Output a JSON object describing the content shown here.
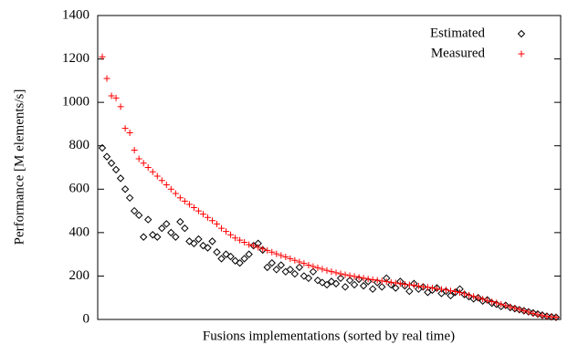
{
  "chart_data": {
    "type": "scatter",
    "x_label": "Fusions implementations (sorted by real time)",
    "y_label": "Performance [M elements/s]",
    "legend": "top-right",
    "xlim": [
      0,
      101
    ],
    "ylim": [
      0,
      1400
    ],
    "yticks": [
      0,
      200,
      400,
      600,
      800,
      1000,
      1200,
      1400
    ],
    "x": [
      1,
      2,
      3,
      4,
      5,
      6,
      7,
      8,
      9,
      10,
      11,
      12,
      13,
      14,
      15,
      16,
      17,
      18,
      19,
      20,
      21,
      22,
      23,
      24,
      25,
      26,
      27,
      28,
      29,
      30,
      31,
      32,
      33,
      34,
      35,
      36,
      37,
      38,
      39,
      40,
      41,
      42,
      43,
      44,
      45,
      46,
      47,
      48,
      49,
      50,
      51,
      52,
      53,
      54,
      55,
      56,
      57,
      58,
      59,
      60,
      61,
      62,
      63,
      64,
      65,
      66,
      67,
      68,
      69,
      70,
      71,
      72,
      73,
      74,
      75,
      76,
      77,
      78,
      79,
      80,
      81,
      82,
      83,
      84,
      85,
      86,
      87,
      88,
      89,
      90,
      91,
      92,
      93,
      94,
      95,
      96,
      97,
      98,
      99,
      100
    ],
    "series": [
      {
        "name": "Estimated",
        "color": "#000000",
        "marker": "diamond",
        "values": [
          790,
          750,
          720,
          690,
          650,
          600,
          560,
          500,
          480,
          380,
          460,
          390,
          380,
          420,
          440,
          400,
          380,
          450,
          420,
          360,
          350,
          370,
          340,
          330,
          360,
          310,
          280,
          300,
          290,
          270,
          260,
          280,
          300,
          340,
          350,
          320,
          240,
          260,
          230,
          250,
          220,
          230,
          210,
          240,
          200,
          190,
          220,
          180,
          170,
          160,
          175,
          165,
          190,
          150,
          180,
          160,
          185,
          155,
          175,
          140,
          170,
          150,
          190,
          160,
          145,
          175,
          155,
          130,
          165,
          140,
          150,
          125,
          135,
          145,
          120,
          130,
          110,
          125,
          140,
          115,
          105,
          95,
          100,
          85,
          90,
          75,
          70,
          60,
          65,
          55,
          50,
          45,
          40,
          35,
          30,
          25,
          20,
          15,
          12,
          10
        ]
      },
      {
        "name": "Measured",
        "color": "#ff0000",
        "marker": "plus",
        "values": [
          1210,
          1110,
          1030,
          1020,
          980,
          880,
          860,
          780,
          740,
          720,
          700,
          680,
          660,
          640,
          620,
          600,
          580,
          560,
          545,
          530,
          515,
          500,
          485,
          470,
          455,
          440,
          420,
          405,
          390,
          375,
          365,
          355,
          345,
          340,
          332,
          325,
          318,
          310,
          302,
          295,
          288,
          280,
          272,
          265,
          258,
          250,
          244,
          238,
          232,
          226,
          220,
          215,
          210,
          206,
          202,
          198,
          194,
          190,
          186,
          183,
          180,
          177,
          174,
          171,
          168,
          165,
          162,
          160,
          157,
          154,
          151,
          148,
          145,
          142,
          139,
          136,
          132,
          128,
          124,
          118,
          112,
          106,
          100,
          94,
          88,
          82,
          76,
          70,
          64,
          58,
          52,
          46,
          40,
          34,
          28,
          22,
          18,
          14,
          12,
          10
        ]
      }
    ]
  }
}
